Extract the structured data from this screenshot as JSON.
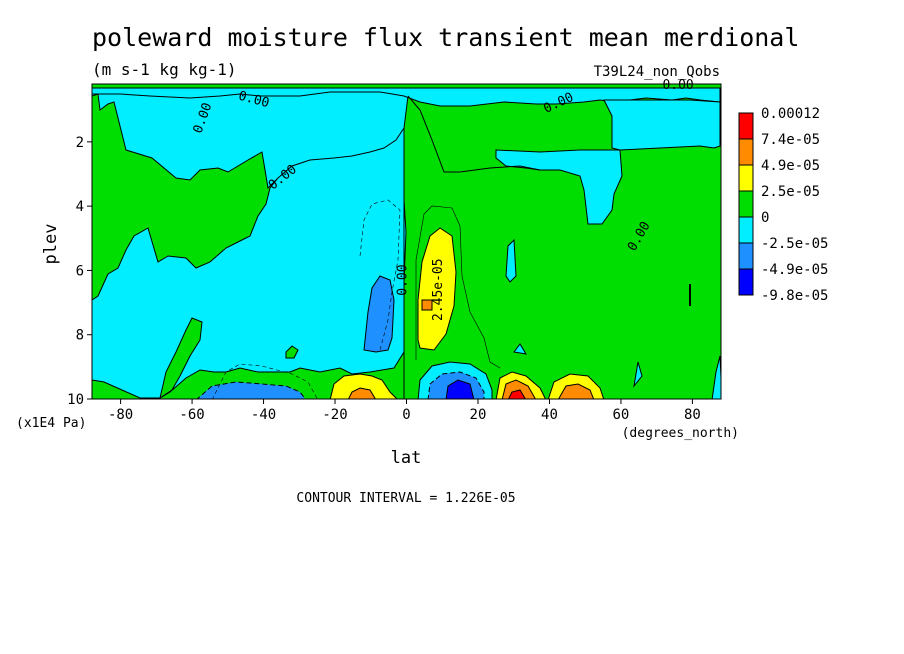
{
  "chart_data": {
    "type": "contour",
    "title": "poleward moisture flux transient mean merdional",
    "units": "(m s-1 kg kg-1)",
    "run_label": "T39L24_non_Qobs",
    "xlabel": "lat",
    "x_units": "(degrees_north)",
    "ylabel": "plev",
    "y_units": "(x1E4 Pa)",
    "xlim": [
      -88,
      88
    ],
    "ylim": [
      10,
      0.2
    ],
    "x_ticks": [
      {
        "v": -80,
        "label": "-80"
      },
      {
        "v": -60,
        "label": "-60"
      },
      {
        "v": -40,
        "label": "-40"
      },
      {
        "v": -20,
        "label": "-20"
      },
      {
        "v": 0,
        "label": "0"
      },
      {
        "v": 20,
        "label": "20"
      },
      {
        "v": 40,
        "label": "40"
      },
      {
        "v": 60,
        "label": "60"
      },
      {
        "v": 80,
        "label": "80"
      }
    ],
    "y_ticks": [
      {
        "v": 2,
        "label": "2"
      },
      {
        "v": 4,
        "label": "4"
      },
      {
        "v": 6,
        "label": "6"
      },
      {
        "v": 8,
        "label": "8"
      },
      {
        "v": 10,
        "label": "10"
      }
    ],
    "contour_interval_text": "CONTOUR INTERVAL = 1.226E-05",
    "legend": {
      "labels": [
        "0.00012",
        "7.4e-05",
        "4.9e-05",
        "2.5e-05",
        "0",
        "-2.5e-05",
        "-4.9e-05",
        "-9.8e-05"
      ],
      "colors": [
        "#ff0000",
        "#ff8c00",
        "#ffff00",
        "#00dd00",
        "#00eeff",
        "#1e90ff",
        "#0000ff"
      ]
    },
    "contour_labels": [
      {
        "text": "0.00",
        "lat": -56,
        "plev": 1.3,
        "angle": -70
      },
      {
        "text": "0.00",
        "lat": -43,
        "plev": 0.8,
        "angle": 15
      },
      {
        "text": "0.00",
        "lat": -34,
        "plev": 3.2,
        "angle": -38
      },
      {
        "text": "0.00",
        "lat": 43,
        "plev": 0.9,
        "angle": -25
      },
      {
        "text": "0.00",
        "lat": 76,
        "plev": 0.35,
        "angle": 0
      },
      {
        "text": "0.00",
        "lat": 66,
        "plev": 5.0,
        "angle": -60
      },
      {
        "text": "0.00",
        "lat": 0,
        "plev": 6.3,
        "angle": -90
      },
      {
        "text": "2.45e-05",
        "lat": 10,
        "plev": 6.6,
        "angle": -90
      }
    ],
    "regions": [
      {
        "band": "negative",
        "level": "-2.5e-05 to 0",
        "lat": [
          -85,
          0
        ],
        "plev": [
          0.4,
          9.5
        ]
      },
      {
        "band": "negative",
        "level": "-2.5e-05 to 0",
        "lat": [
          0,
          88
        ],
        "plev": [
          0.3,
          0.8
        ]
      },
      {
        "band": "negative",
        "level": "-4.9e-05 to -2.5e-05",
        "lat": [
          -12,
          -3
        ],
        "plev": [
          5.8,
          8.6
        ]
      },
      {
        "band": "negative",
        "level": "-4.9e-05 to -2.5e-05",
        "lat": [
          -55,
          -20
        ],
        "plev": [
          9.5,
          10
        ]
      },
      {
        "band": "negative",
        "level": "-9.8e-05 to -4.9e-05",
        "lat": [
          4,
          24
        ],
        "plev": [
          8.9,
          10
        ]
      },
      {
        "band": "positive",
        "level": "2.5e-05 to 4.9e-05",
        "lat": [
          4,
          14
        ],
        "plev": [
          4.6,
          8.8
        ]
      },
      {
        "band": "positive",
        "level": "2.5e-05 to 4.9e-05",
        "lat": [
          -20,
          -3
        ],
        "plev": [
          9.0,
          10
        ]
      },
      {
        "band": "positive",
        "level": "4.9e-05 to 0.00012",
        "lat": [
          26,
          58
        ],
        "plev": [
          9.2,
          10
        ]
      }
    ]
  }
}
